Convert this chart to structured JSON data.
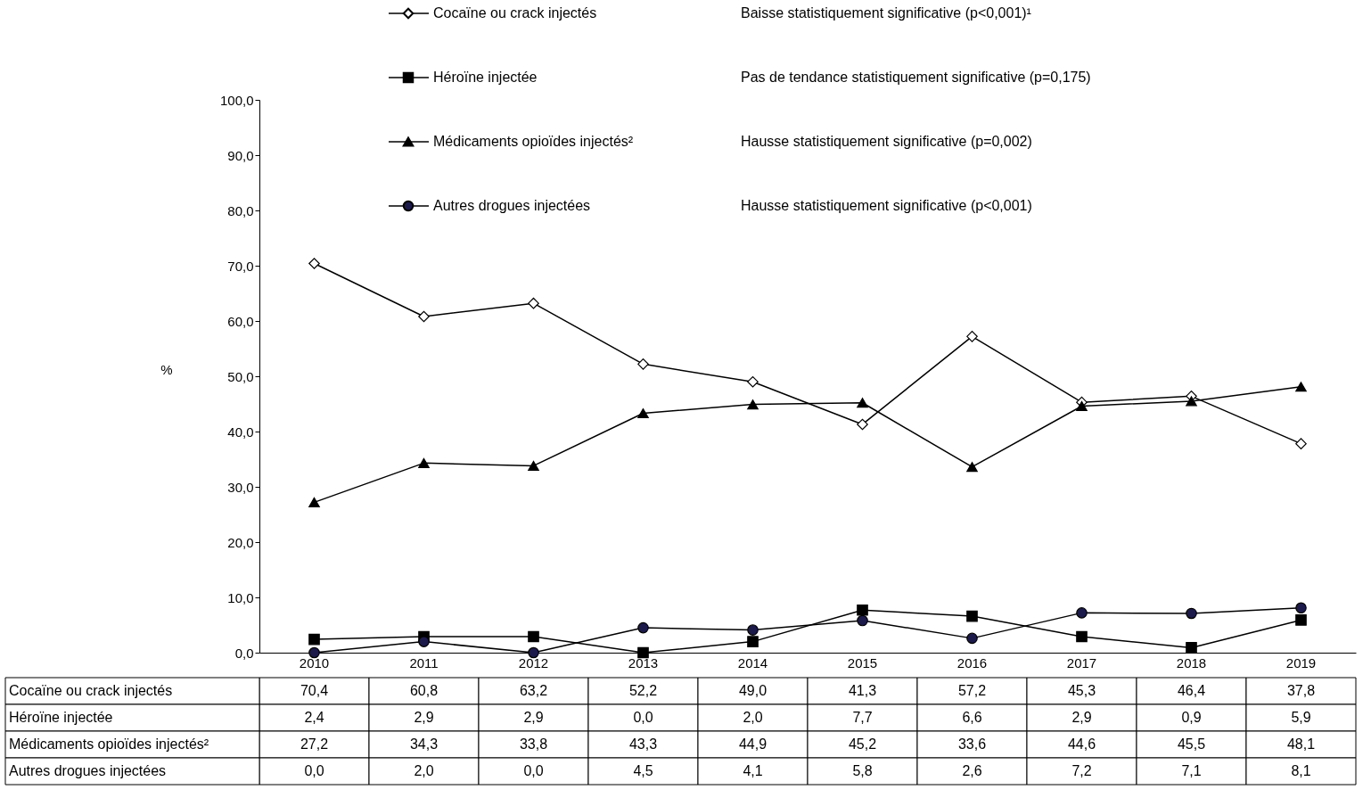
{
  "chart_data": {
    "type": "line",
    "categories": [
      "2010",
      "2011",
      "2012",
      "2013",
      "2014",
      "2015",
      "2016",
      "2017",
      "2018",
      "2019"
    ],
    "ylabel": "%",
    "ylim": [
      0,
      100
    ],
    "yticks": [
      {
        "value": 0,
        "label": "0,0"
      },
      {
        "value": 10,
        "label": "10,0"
      },
      {
        "value": 20,
        "label": "20,0"
      },
      {
        "value": 30,
        "label": "30,0"
      },
      {
        "value": 40,
        "label": "40,0"
      },
      {
        "value": 50,
        "label": "50,0"
      },
      {
        "value": 60,
        "label": "60,0"
      },
      {
        "value": 70,
        "label": "70,0"
      },
      {
        "value": 80,
        "label": "80,0"
      },
      {
        "value": 90,
        "label": "90,0"
      },
      {
        "value": 100,
        "label": "100,0"
      }
    ],
    "grid": false,
    "legend": "top",
    "series": [
      {
        "name": "Cocaïne ou crack injectés",
        "color": "#000000",
        "marker": "diamond",
        "values": [
          70.4,
          60.8,
          63.2,
          52.2,
          49.0,
          41.3,
          57.2,
          45.3,
          46.4,
          37.8
        ],
        "value_labels": [
          "70,4",
          "60,8",
          "63,2",
          "52,2",
          "49,0",
          "41,3",
          "57,2",
          "45,3",
          "46,4",
          "37,8"
        ]
      },
      {
        "name": "Héroïne injectée",
        "color": "#000000",
        "marker": "square",
        "values": [
          2.4,
          2.9,
          2.9,
          0.0,
          2.0,
          7.7,
          6.6,
          2.9,
          0.9,
          5.9
        ],
        "value_labels": [
          "2,4",
          "2,9",
          "2,9",
          "0,0",
          "2,0",
          "7,7",
          "6,6",
          "2,9",
          "0,9",
          "5,9"
        ]
      },
      {
        "name": "Médicaments opioïdes injectés²",
        "color": "#000000",
        "marker": "triangle",
        "values": [
          27.2,
          34.3,
          33.8,
          43.3,
          44.9,
          45.2,
          33.6,
          44.6,
          45.5,
          48.1
        ],
        "value_labels": [
          "27,2",
          "34,3",
          "33,8",
          "43,3",
          "44,9",
          "45,2",
          "33,6",
          "44,6",
          "45,5",
          "48,1"
        ]
      },
      {
        "name": "Autres drogues injectées",
        "color": "#000000",
        "marker": "circle",
        "values": [
          0.0,
          2.0,
          0.0,
          4.5,
          4.1,
          5.8,
          2.6,
          7.2,
          7.1,
          8.1
        ],
        "value_labels": [
          "0,0",
          "2,0",
          "0,0",
          "4,5",
          "4,1",
          "5,8",
          "2,6",
          "7,2",
          "7,1",
          "8,1"
        ]
      }
    ],
    "annotations": [
      "Baisse statistiquement significative (p<0,001)¹",
      "Pas de tendance statistiquement significative (p=0,175)",
      "Hausse statistiquement significative (p=0,002)",
      "Hausse statistiquement significative (p<0,001)"
    ]
  }
}
